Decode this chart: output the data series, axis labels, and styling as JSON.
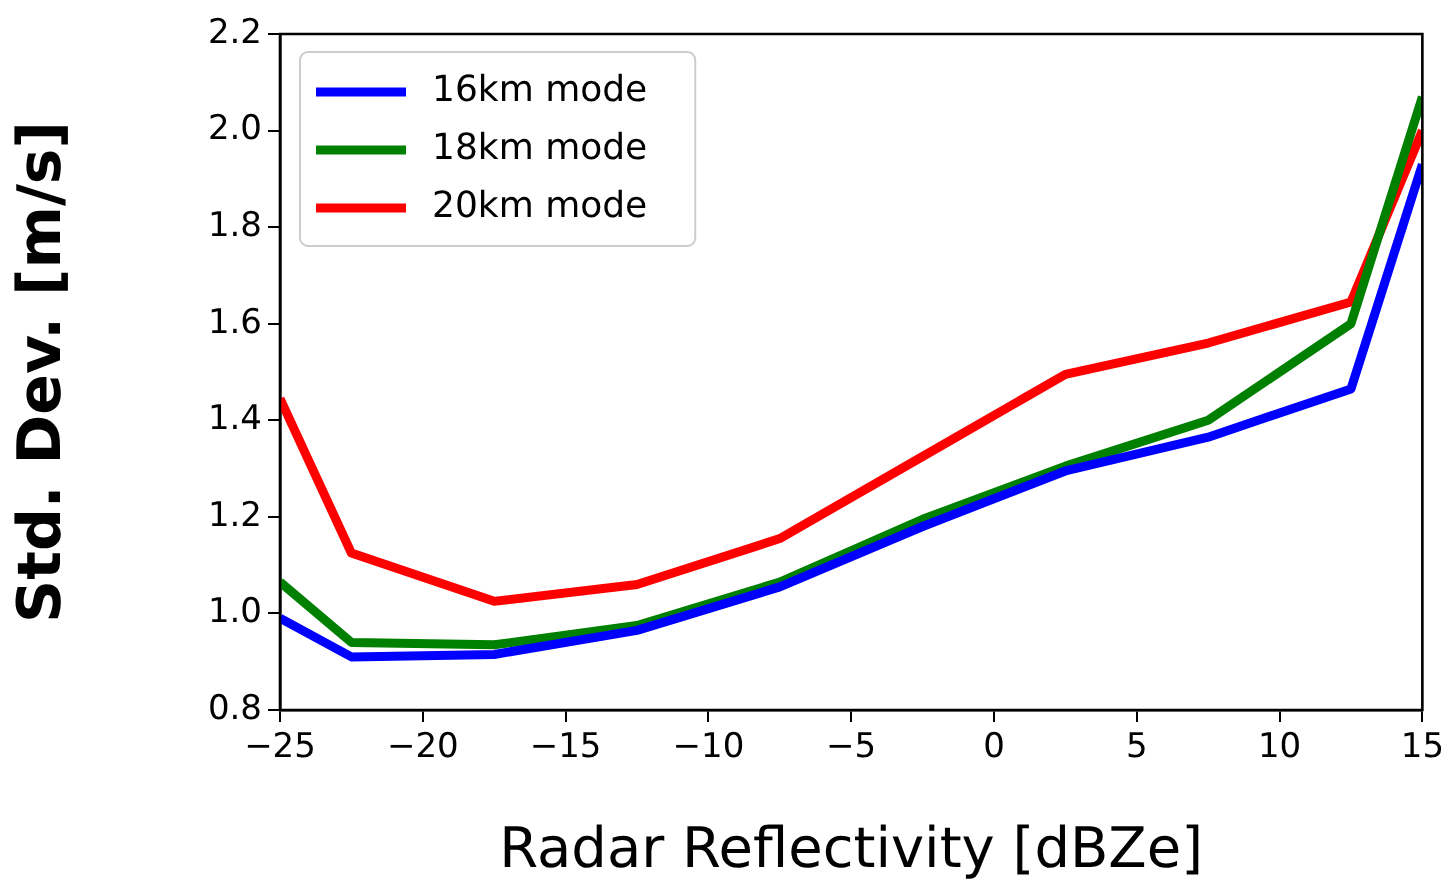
{
  "chart_data": {
    "type": "line",
    "xlabel": "Radar Reflectivity [dBZe]",
    "ylabel": "Std. Dev. [m/s]",
    "x": [
      -25,
      -22.5,
      -17.5,
      -12.5,
      -7.5,
      -2.5,
      2.5,
      7.5,
      12.5,
      15
    ],
    "series": [
      {
        "name": "16km mode",
        "color": "#0000ff",
        "values": [
          0.99,
          0.91,
          0.915,
          0.965,
          1.055,
          1.18,
          1.295,
          1.365,
          1.465,
          1.93
        ]
      },
      {
        "name": "18km mode",
        "color": "#008000",
        "values": [
          1.065,
          0.94,
          0.935,
          0.975,
          1.065,
          1.195,
          1.305,
          1.4,
          1.6,
          2.07
        ]
      },
      {
        "name": "20km mode",
        "color": "#ff0000",
        "values": [
          1.445,
          1.125,
          1.025,
          1.06,
          1.155,
          1.325,
          1.495,
          1.56,
          1.645,
          2.0
        ]
      }
    ],
    "xlim": [
      -25,
      15
    ],
    "xticks": [
      -25,
      -20,
      -15,
      -10,
      -5,
      0,
      5,
      10,
      15
    ],
    "ylim": [
      0.8,
      2.2
    ],
    "yticks": [
      {
        "value": 0.8,
        "label": "0.8"
      },
      {
        "value": 1.0,
        "label": "1.0"
      },
      {
        "value": 1.2,
        "label": "1.2"
      },
      {
        "value": 1.4,
        "label": "1.4"
      },
      {
        "value": 1.6,
        "label": "1.6"
      },
      {
        "value": 1.8,
        "label": "1.8"
      },
      {
        "value": 2.0,
        "label": "2.0"
      },
      {
        "value": 2.2,
        "label": "2.2"
      }
    ],
    "legend": "top left",
    "grid": false,
    "marker": "none",
    "line_style": "solid"
  }
}
